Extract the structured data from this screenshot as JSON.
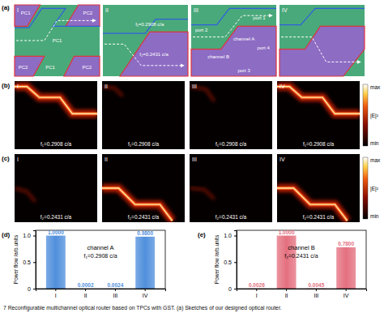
{
  "figure": {
    "panel_labels": [
      "(a)",
      "(b)",
      "(c)",
      "(d)",
      "(e)"
    ],
    "sketches": [
      {
        "label": "I",
        "texts": [
          "PC1",
          "PC2",
          "PC1",
          "PC2",
          "PC1",
          "PC2"
        ]
      },
      {
        "label": "II",
        "texts": [
          "f₁=0.2908 c/a",
          "f₂=0.2431 c/a"
        ]
      },
      {
        "label": "III",
        "texts": [
          "port 1",
          "port 2",
          "channel A",
          "channel B",
          "port 4",
          "port 3"
        ]
      },
      {
        "label": "IV",
        "texts": []
      }
    ],
    "field_rows": [
      {
        "labels": [
          "I",
          "II",
          "III",
          "IV"
        ],
        "frequency": "f₁=0.2908 c/a"
      },
      {
        "labels": [
          "I",
          "II",
          "III",
          "IV"
        ],
        "frequency": "f₂=0.2431 c/a"
      }
    ],
    "colorbar": {
      "title": "|E|²",
      "max_label": "max",
      "min_label": "min"
    },
    "caption": "7   Reconfigurable multichannel optical router based on TPCs with GST. (a) Sketches of our designed optical router."
  },
  "chart_data": [
    {
      "type": "bar",
      "title": "channel A",
      "subtitle": "f₁=0.2908 c/a",
      "y_label": "Power flow /arb.units",
      "categories": [
        "I",
        "II",
        "III",
        "IV"
      ],
      "values": [
        1.0,
        0.0002,
        0.0024,
        0.98
      ],
      "value_labels": [
        "1.0000",
        "0.0002",
        "0.0024",
        "0.9800"
      ],
      "data_labels": true,
      "color": "#4f8fdc",
      "ylim": [
        0,
        1.1
      ],
      "yticks": [
        0,
        0.5,
        {
          "value": 1,
          "label": "1.0"
        }
      ]
    },
    {
      "type": "bar",
      "title": "channel B",
      "subtitle": "f₂=0.2431 c/a",
      "y_label": "Power flow /arb.units",
      "categories": [
        "I",
        "II",
        "III",
        "IV"
      ],
      "values": [
        0.0026,
        1.0,
        0.0045,
        0.78
      ],
      "value_labels": [
        "0.0026",
        "1.0000",
        "0.0045",
        "0.7800"
      ],
      "data_labels": true,
      "color": "#e4707f",
      "ylim": [
        0,
        1.1
      ],
      "yticks": [
        0,
        0.5,
        {
          "value": 1,
          "label": "1.0"
        }
      ]
    }
  ]
}
